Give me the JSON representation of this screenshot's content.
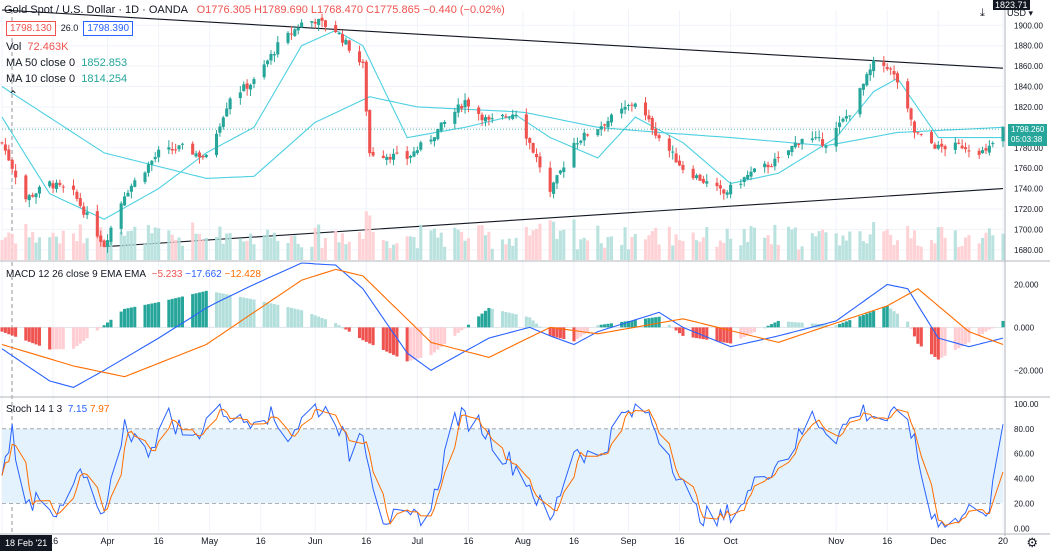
{
  "header": {
    "symbol": "Gold Spot / U.S. Dollar · 1D · OANDA",
    "ohlc": "O1776.305 H1789.690 L1768.470 C1775.865 −0.440 (−0.02%)",
    "bid": "1798.130",
    "spread": "26.0",
    "ask": "1798.390",
    "vol_label": "Vol",
    "vol_value": "72.463K",
    "ma50_label": "MA 50 close 0",
    "ma50_value": "1852.853",
    "ma10_label": "MA 10 close 0",
    "ma10_value": "1814.254",
    "currency": "USD",
    "top_right_partial": "1823.71"
  },
  "price_scale": {
    "ticks": [
      "1900.00",
      "1880.00",
      "1860.00",
      "1840.00",
      "1820.00",
      "1800.00",
      "1780.00",
      "1760.00",
      "1740.00",
      "1720.00",
      "1700.00",
      "1680.00"
    ],
    "last_price": "1798.260",
    "countdown": "05:03:38"
  },
  "macd_panel": {
    "label": "MACD 12 26 close 9 EMA EMA",
    "macd": "−5.233",
    "signal": "−17.662",
    "hist": "−12.428",
    "ticks": [
      "20.000",
      "0.000",
      "−20.000"
    ]
  },
  "stoch_panel": {
    "label": "Stoch 14 1 3",
    "k": "7.15",
    "d": "7.97",
    "ticks": [
      "100.00",
      "80.00",
      "60.00",
      "40.00",
      "20.00",
      "0.00"
    ]
  },
  "time_axis": {
    "labels": [
      "ar",
      "16",
      "Apr",
      "16",
      "May",
      "16",
      "Jun",
      "16",
      "Jul",
      "16",
      "Aug",
      "16",
      "Sep",
      "16",
      "Oct",
      "Nov",
      "16",
      "Dec",
      "20"
    ],
    "crosshair_date": "18 Feb '21"
  },
  "colors": {
    "up": "#26a69a",
    "down": "#ef5350",
    "up_light": "#b2dfdb",
    "down_light": "#ffcdd2",
    "ma": "#4dd0e1",
    "macd": "#2962ff",
    "signal": "#ff6d00",
    "stoch_band": "#e3f2fd"
  },
  "chart_data": [
    {
      "type": "candlestick",
      "title": "Gold Spot / U.S. Dollar · 1D · OANDA",
      "ylim": [
        1670,
        1915
      ],
      "indicators": [
        "MA 50 close 0",
        "MA 10 close 0",
        "Vol"
      ],
      "x_start_day": "Mar 1",
      "x_end_day": "Dec 20",
      "last": 1798.26,
      "trendline_upper": [
        [
          "Mar 1",
          1915
        ],
        [
          "Dec 20",
          1858
        ]
      ],
      "trendline_lower": [
        [
          "Mar 31",
          1683
        ],
        [
          "Dec 20",
          1740
        ]
      ],
      "close_anchors": [
        [
          "Mar 1",
          1785
        ],
        [
          "Mar 8",
          1730
        ],
        [
          "Mar 15",
          1745
        ],
        [
          "Mar 22",
          1735
        ],
        [
          "Mar 31",
          1685
        ],
        [
          "Apr 6",
          1735
        ],
        [
          "Apr 16",
          1775
        ],
        [
          "Apr 23",
          1780
        ],
        [
          "Apr 30",
          1770
        ],
        [
          "May 7",
          1830
        ],
        [
          "May 14",
          1845
        ],
        [
          "May 21",
          1880
        ],
        [
          "May 28",
          1902
        ],
        [
          "Jun 1",
          1905
        ],
        [
          "Jun 7",
          1895
        ],
        [
          "Jun 11",
          1878
        ],
        [
          "Jun 15",
          1860
        ],
        [
          "Jun 17",
          1775
        ],
        [
          "Jun 28",
          1770
        ],
        [
          "Jul 5",
          1790
        ],
        [
          "Jul 15",
          1826
        ],
        [
          "Jul 22",
          1805
        ],
        [
          "Jul 30",
          1815
        ],
        [
          "Aug 6",
          1762
        ],
        [
          "Aug 9",
          1735
        ],
        [
          "Aug 16",
          1785
        ],
        [
          "Aug 23",
          1800
        ],
        [
          "Sep 3",
          1825
        ],
        [
          "Sep 10",
          1790
        ],
        [
          "Sep 17",
          1760
        ],
        [
          "Sep 29",
          1735
        ],
        [
          "Oct 7",
          1755
        ],
        [
          "Oct 15",
          1768
        ],
        [
          "Oct 22",
          1790
        ],
        [
          "Oct 29",
          1785
        ],
        [
          "Nov 5",
          1815
        ],
        [
          "Nov 12",
          1862
        ],
        [
          "Nov 16",
          1860
        ],
        [
          "Nov 19",
          1845
        ],
        [
          "Nov 24",
          1795
        ],
        [
          "Dec 1",
          1780
        ],
        [
          "Dec 8",
          1782
        ],
        [
          "Dec 15",
          1775
        ],
        [
          "Dec 20",
          1798.26
        ]
      ],
      "ma10_anchors": [
        [
          "Mar 1",
          1810
        ],
        [
          "Mar 15",
          1735
        ],
        [
          "Mar 31",
          1710
        ],
        [
          "Apr 16",
          1740
        ],
        [
          "Apr 30",
          1775
        ],
        [
          "May 14",
          1800
        ],
        [
          "May 28",
          1880
        ],
        [
          "Jun 7",
          1895
        ],
        [
          "Jun 15",
          1880
        ],
        [
          "Jun 28",
          1790
        ],
        [
          "Jul 15",
          1800
        ],
        [
          "Jul 30",
          1812
        ],
        [
          "Aug 9",
          1790
        ],
        [
          "Aug 23",
          1770
        ],
        [
          "Sep 3",
          1810
        ],
        [
          "Sep 17",
          1785
        ],
        [
          "Oct 1",
          1745
        ],
        [
          "Oct 15",
          1755
        ],
        [
          "Nov 1",
          1790
        ],
        [
          "Nov 12",
          1835
        ],
        [
          "Nov 19",
          1848
        ],
        [
          "Dec 1",
          1790
        ],
        [
          "Dec 20",
          1790
        ]
      ],
      "ma50_anchors": [
        [
          "Mar 1",
          1840
        ],
        [
          "Mar 31",
          1775
        ],
        [
          "Apr 30",
          1750
        ],
        [
          "May 14",
          1752
        ],
        [
          "Jun 1",
          1805
        ],
        [
          "Jun 17",
          1830
        ],
        [
          "Jul 1",
          1820
        ],
        [
          "Aug 1",
          1815
        ],
        [
          "Aug 23",
          1800
        ],
        [
          "Sep 10",
          1795
        ],
        [
          "Oct 1",
          1790
        ],
        [
          "Oct 29",
          1782
        ],
        [
          "Nov 19",
          1795
        ],
        [
          "Dec 20",
          1800
        ]
      ]
    },
    {
      "type": "line",
      "title": "MACD 12 26 close 9 EMA EMA",
      "ylim": [
        -32,
        30
      ],
      "series_names": [
        "MACD",
        "Signal",
        "Histogram"
      ],
      "macd_anchors": [
        [
          "Mar 1",
          -10
        ],
        [
          "Mar 15",
          -25
        ],
        [
          "Mar 22",
          -28
        ],
        [
          "Mar 31",
          -20
        ],
        [
          "Apr 16",
          -5
        ],
        [
          "May 1",
          10
        ],
        [
          "May 14",
          20
        ],
        [
          "May 28",
          30
        ],
        [
          "Jun 7",
          29
        ],
        [
          "Jun 15",
          18
        ],
        [
          "Jun 28",
          -12
        ],
        [
          "Jul 5",
          -20
        ],
        [
          "Jul 22",
          -5
        ],
        [
          "Aug 3",
          0
        ],
        [
          "Aug 9",
          -4
        ],
        [
          "Aug 16",
          -8
        ],
        [
          "Aug 23",
          -2
        ],
        [
          "Sep 10",
          7
        ],
        [
          "Sep 17",
          0
        ],
        [
          "Oct 1",
          -9
        ],
        [
          "Oct 15",
          -4
        ],
        [
          "Nov 1",
          3
        ],
        [
          "Nov 16",
          20
        ],
        [
          "Nov 22",
          18
        ],
        [
          "Dec 1",
          -5
        ],
        [
          "Dec 10",
          -9
        ],
        [
          "Dec 20",
          -5
        ]
      ],
      "signal_anchors": [
        [
          "Mar 1",
          -8
        ],
        [
          "Mar 22",
          -18
        ],
        [
          "Apr 6",
          -23
        ],
        [
          "Apr 30",
          -8
        ],
        [
          "May 28",
          22
        ],
        [
          "Jun 7",
          27
        ],
        [
          "Jun 15",
          24
        ],
        [
          "Jul 5",
          -7
        ],
        [
          "Jul 22",
          -14
        ],
        [
          "Aug 9",
          0
        ],
        [
          "Aug 23",
          -3
        ],
        [
          "Sep 17",
          4
        ],
        [
          "Oct 15",
          -7
        ],
        [
          "Nov 16",
          10
        ],
        [
          "Nov 25",
          18
        ],
        [
          "Dec 10",
          -2
        ],
        [
          "Dec 20",
          -8
        ]
      ]
    },
    {
      "type": "line",
      "title": "Stoch 14 1 3",
      "ylim": [
        -3,
        104
      ],
      "bands": [
        20,
        80
      ],
      "series_names": [
        "%K",
        "%D"
      ],
      "k_anchors": [
        [
          "Mar 1",
          40
        ],
        [
          "Mar 4",
          80
        ],
        [
          "Mar 8",
          15
        ],
        [
          "Mar 12",
          30
        ],
        [
          "Mar 18",
          10
        ],
        [
          "Mar 24",
          45
        ],
        [
          "Mar 31",
          5
        ],
        [
          "Apr 6",
          85
        ],
        [
          "Apr 12",
          60
        ],
        [
          "Apr 19",
          90
        ],
        [
          "Apr 26",
          70
        ],
        [
          "May 3",
          100
        ],
        [
          "May 10",
          85
        ],
        [
          "May 17",
          95
        ],
        [
          "May 24",
          75
        ],
        [
          "Jun 1",
          98
        ],
        [
          "Jun 7",
          90
        ],
        [
          "Jun 11",
          60
        ],
        [
          "Jun 15",
          80
        ],
        [
          "Jun 20",
          10
        ],
        [
          "Jun 28",
          5
        ],
        [
          "Jul 5",
          15
        ],
        [
          "Jul 12",
          90
        ],
        [
          "Jul 19",
          85
        ],
        [
          "Jul 26",
          60
        ],
        [
          "Aug 2",
          40
        ],
        [
          "Aug 9",
          3
        ],
        [
          "Aug 16",
          65
        ],
        [
          "Aug 23",
          55
        ],
        [
          "Aug 30",
          90
        ],
        [
          "Sep 6",
          95
        ],
        [
          "Sep 13",
          60
        ],
        [
          "Sep 20",
          15
        ],
        [
          "Sep 27",
          5
        ],
        [
          "Oct 4",
          20
        ],
        [
          "Oct 11",
          45
        ],
        [
          "Oct 18",
          60
        ],
        [
          "Oct 25",
          90
        ],
        [
          "Nov 1",
          75
        ],
        [
          "Nov 8",
          95
        ],
        [
          "Nov 15",
          88
        ],
        [
          "Nov 22",
          90
        ],
        [
          "Nov 29",
          10
        ],
        [
          "Dec 6",
          5
        ],
        [
          "Dec 13",
          20
        ],
        [
          "Dec 16",
          15
        ],
        [
          "Dec 20",
          80
        ]
      ]
    }
  ]
}
